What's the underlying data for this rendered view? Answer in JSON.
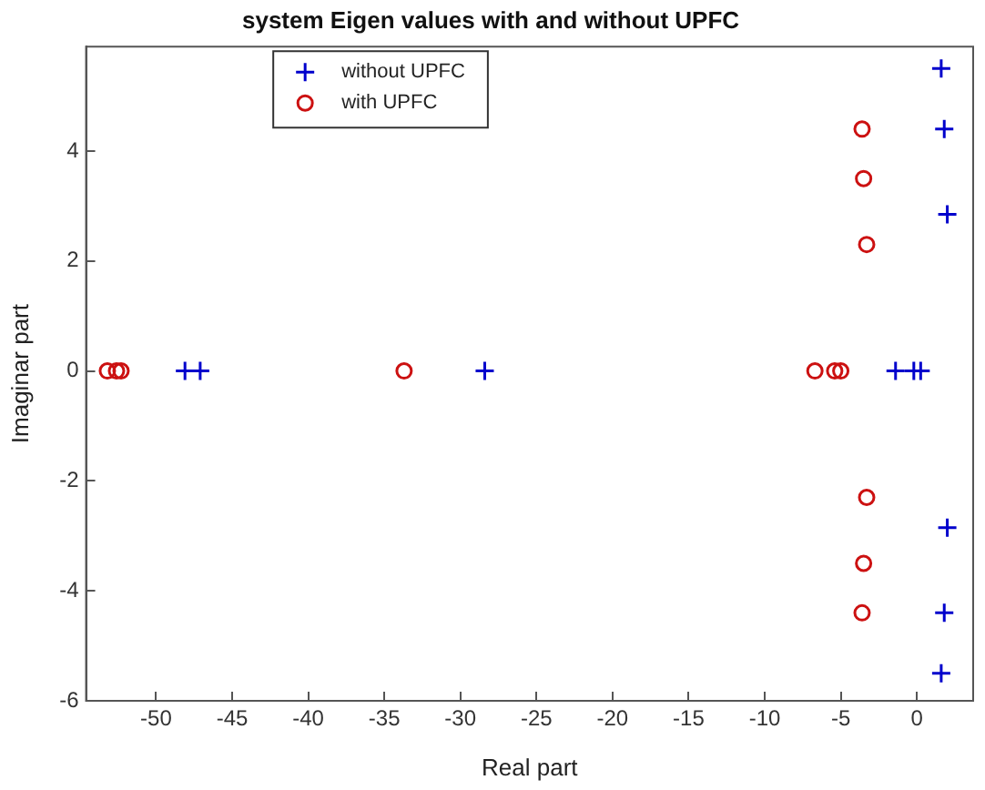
{
  "chart_data": {
    "type": "scatter",
    "title": "system Eigen values with and without UPFC",
    "xlabel": "Real part",
    "ylabel": "Imaginar part",
    "xlim": [
      -54.6,
      3.7
    ],
    "ylim": [
      -6,
      5.9
    ],
    "xticks": [
      -50,
      -45,
      -40,
      -35,
      -30,
      -25,
      -20,
      -15,
      -10,
      -5,
      0
    ],
    "yticks": [
      -6,
      -4,
      -2,
      0,
      2,
      4
    ],
    "grid": false,
    "legend": "top",
    "series": [
      {
        "name": "without UPFC",
        "color": "#0000cc",
        "marker": "cross",
        "x": [
          1.6,
          1.8,
          2.0,
          2.0,
          1.8,
          1.6,
          -1.4,
          -0.2,
          0.25,
          -48.1,
          -47.1,
          -28.4
        ],
        "values": [
          5.5,
          4.4,
          2.85,
          -2.85,
          -4.4,
          -5.5,
          0,
          0,
          0,
          0,
          0,
          0
        ]
      },
      {
        "name": "with UPFC",
        "color": "#cc1111",
        "marker": "circle",
        "x": [
          -3.6,
          -3.5,
          -3.3,
          -3.3,
          -3.5,
          -3.6,
          -6.7,
          -5.4,
          -5.0,
          -53.2,
          -52.6,
          -52.3,
          -33.7
        ],
        "values": [
          4.4,
          3.5,
          2.3,
          -2.3,
          -3.5,
          -4.4,
          0,
          0,
          0,
          0,
          0,
          0,
          0
        ]
      }
    ]
  }
}
